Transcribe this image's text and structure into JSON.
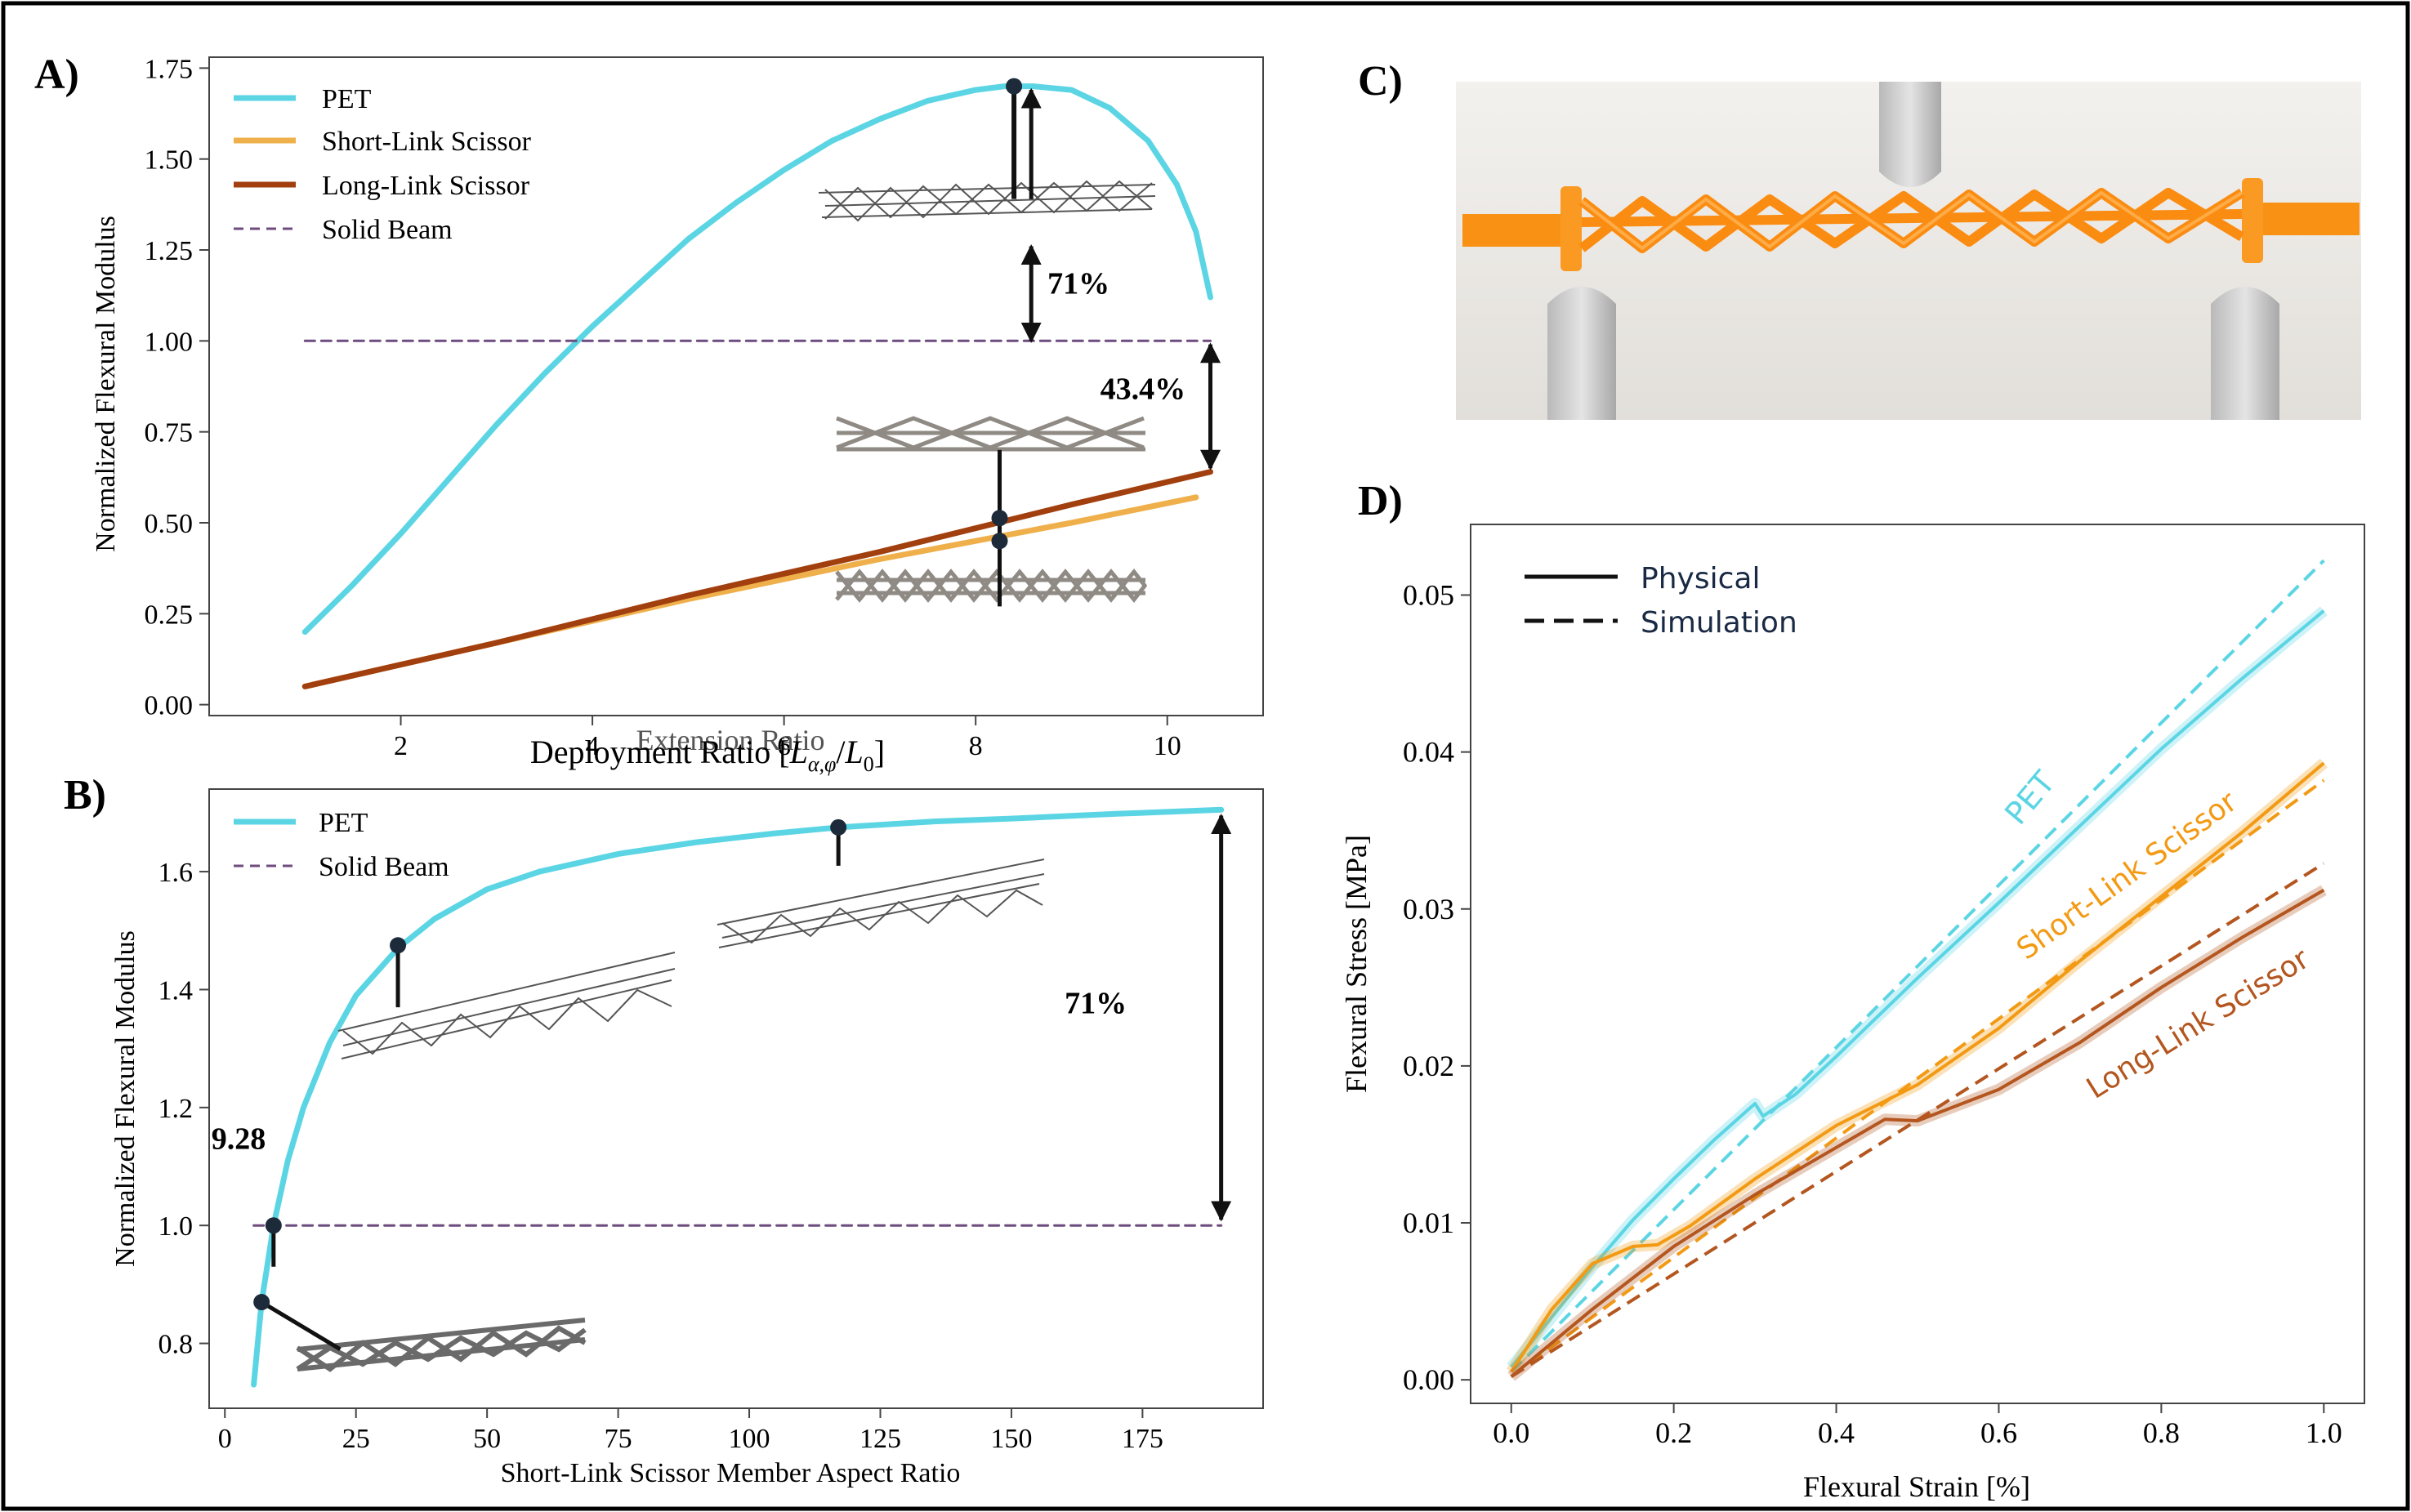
{
  "panels": {
    "A": "A)",
    "B": "B)",
    "C": "C)",
    "D": "D)"
  },
  "colors": {
    "pet": "#5bd5e4",
    "short": "#efb04c",
    "long": "#a23f0e",
    "solid": "#6e4c7e",
    "d_short": "#f39a14",
    "d_long": "#b4561f"
  },
  "chart_data": [
    {
      "id": "A",
      "type": "line",
      "title": "",
      "xlabel": "Deployment Ratio [L_{α,φ}/L_0]",
      "xlabel_main": "Deployment Ratio [",
      "xlabel_math": "L",
      "xlabel_sub": "α,φ",
      "xlabel_mid": "/",
      "xlabel_math2": "L",
      "xlabel_sub2": "0",
      "xlabel_end": "]",
      "xlabel_overlap": "Extension Ratio",
      "ylabel": "Normalized Flexural Modulus",
      "xlim": [
        0.0,
        11.0
      ],
      "ylim": [
        -0.03,
        1.78
      ],
      "xticks": [
        2,
        4,
        6,
        8,
        10
      ],
      "yticks": [
        0.0,
        0.25,
        0.5,
        0.75,
        1.0,
        1.25,
        1.5,
        1.75
      ],
      "ytick_labels": [
        "0.00",
        "0.25",
        "0.50",
        "0.75",
        "1.00",
        "1.25",
        "1.50",
        "1.75"
      ],
      "xtick_labels": [
        "2",
        "4",
        "6",
        "8",
        "10"
      ],
      "grid": false,
      "legend_position": "top-left",
      "series": [
        {
          "name": "PET",
          "style": "solid",
          "x": [
            1.0,
            1.5,
            2.0,
            2.5,
            3.0,
            3.5,
            4.0,
            4.5,
            5.0,
            5.5,
            6.0,
            6.5,
            7.0,
            7.5,
            8.0,
            8.3,
            8.6,
            9.0,
            9.4,
            9.8,
            10.1,
            10.3,
            10.45
          ],
          "y": [
            0.2,
            0.33,
            0.47,
            0.62,
            0.77,
            0.91,
            1.04,
            1.16,
            1.28,
            1.38,
            1.47,
            1.55,
            1.61,
            1.66,
            1.69,
            1.7,
            1.7,
            1.69,
            1.64,
            1.55,
            1.43,
            1.3,
            1.12
          ]
        },
        {
          "name": "Short-Link Scissor",
          "style": "solid",
          "x": [
            1.0,
            3.0,
            5.0,
            7.0,
            9.0,
            10.3
          ],
          "y": [
            0.05,
            0.17,
            0.29,
            0.4,
            0.5,
            0.57
          ]
        },
        {
          "name": "Long-Link Scissor",
          "style": "solid",
          "x": [
            1.0,
            3.0,
            5.0,
            7.0,
            9.0,
            10.45
          ],
          "y": [
            0.05,
            0.17,
            0.3,
            0.42,
            0.55,
            0.64
          ]
        },
        {
          "name": "Solid Beam",
          "style": "dashed",
          "x": [
            1.0,
            10.45
          ],
          "y": [
            1.0,
            1.0
          ]
        }
      ],
      "annotations": [
        {
          "text": "71%",
          "x": 8.35,
          "y": 1.2
        },
        {
          "text": "43.4%",
          "x": 9.4,
          "y": 0.84
        }
      ]
    },
    {
      "id": "B",
      "type": "line",
      "title": "",
      "xlabel": "Short-Link Scissor Member Aspect Ratio",
      "ylabel": "Normalized Flexural Modulus",
      "xlim": [
        -3.0,
        198.0
      ],
      "ylim": [
        0.69,
        1.74
      ],
      "xticks": [
        0,
        25,
        50,
        75,
        100,
        125,
        150,
        175
      ],
      "yticks": [
        0.8,
        1.0,
        1.2,
        1.4,
        1.6
      ],
      "xtick_labels": [
        "0",
        "25",
        "50",
        "75",
        "100",
        "125",
        "150",
        "175"
      ],
      "ytick_labels": [
        "0.8",
        "1.0",
        "1.2",
        "1.4",
        "1.6"
      ],
      "grid": false,
      "legend_position": "top-left",
      "series": [
        {
          "name": "PET",
          "style": "solid",
          "x": [
            5.5,
            7.0,
            9.28,
            12.0,
            15.0,
            20.0,
            25.0,
            33.0,
            40.0,
            50.0,
            60.0,
            75.0,
            90.0,
            105.0,
            117.0,
            135.0,
            150.0,
            170.0,
            190.0
          ],
          "y": [
            0.73,
            0.87,
            1.0,
            1.11,
            1.2,
            1.31,
            1.39,
            1.47,
            1.52,
            1.57,
            1.6,
            1.63,
            1.65,
            1.665,
            1.675,
            1.685,
            1.69,
            1.698,
            1.705
          ]
        },
        {
          "name": "Solid Beam",
          "style": "dashed",
          "x": [
            5.5,
            190.0
          ],
          "y": [
            1.0,
            1.0
          ]
        }
      ],
      "annotations": [
        {
          "text": "9.28",
          "x": 9.28,
          "y": 1.1
        },
        {
          "text": "71%",
          "x": 180.0,
          "y": 1.36
        }
      ]
    },
    {
      "id": "D",
      "type": "line",
      "title": "",
      "xlabel": "Flexural Strain [%]",
      "ylabel": "Flexural Stress [MPa]",
      "xlim": [
        -0.05,
        1.05
      ],
      "ylim": [
        -0.0015,
        0.0545
      ],
      "xticks": [
        0.0,
        0.2,
        0.4,
        0.6,
        0.8,
        1.0
      ],
      "yticks": [
        0.0,
        0.01,
        0.02,
        0.03,
        0.04,
        0.05
      ],
      "xtick_labels": [
        "0.0",
        "0.2",
        "0.4",
        "0.6",
        "0.8",
        "1.0"
      ],
      "ytick_labels": [
        "0.00",
        "0.01",
        "0.02",
        "0.03",
        "0.04",
        "0.05"
      ],
      "grid": false,
      "legend_position": "top-left",
      "legend": [
        "Physical",
        "Simulation"
      ],
      "series": [
        {
          "name": "PET",
          "style": "solid",
          "x": [
            0.0,
            0.05,
            0.1,
            0.15,
            0.2,
            0.25,
            0.3,
            0.31,
            0.35,
            0.4,
            0.5,
            0.6,
            0.7,
            0.8,
            0.9,
            1.0
          ],
          "y": [
            0.0008,
            0.004,
            0.0072,
            0.0102,
            0.0128,
            0.0153,
            0.0176,
            0.0168,
            0.0182,
            0.0206,
            0.0256,
            0.0304,
            0.0353,
            0.0402,
            0.0447,
            0.049
          ]
        },
        {
          "name": "PET",
          "style": "dashed",
          "x": [
            0.0,
            1.0
          ],
          "y": [
            0.0005,
            0.0522
          ]
        },
        {
          "name": "Short-Link Scissor",
          "style": "solid",
          "x": [
            0.0,
            0.05,
            0.1,
            0.15,
            0.18,
            0.22,
            0.3,
            0.4,
            0.5,
            0.6,
            0.7,
            0.8,
            0.9,
            1.0
          ],
          "y": [
            0.0005,
            0.0045,
            0.0074,
            0.0085,
            0.0086,
            0.0098,
            0.0128,
            0.0162,
            0.0188,
            0.0224,
            0.0267,
            0.0308,
            0.0349,
            0.0393
          ]
        },
        {
          "name": "Short-Link Scissor",
          "style": "dashed",
          "x": [
            0.0,
            1.0
          ],
          "y": [
            0.0002,
            0.0382
          ]
        },
        {
          "name": "Long-Link Scissor",
          "style": "solid",
          "x": [
            0.0,
            0.1,
            0.2,
            0.3,
            0.4,
            0.46,
            0.5,
            0.6,
            0.7,
            0.8,
            0.9,
            1.0
          ],
          "y": [
            0.0002,
            0.0045,
            0.0085,
            0.0118,
            0.0148,
            0.0166,
            0.0165,
            0.0185,
            0.0215,
            0.025,
            0.0282,
            0.0312
          ]
        },
        {
          "name": "Long-Link Scissor",
          "style": "dashed",
          "x": [
            0.0,
            1.0
          ],
          "y": [
            0.0002,
            0.0329
          ]
        }
      ],
      "curve_labels": [
        "PET",
        "Short-Link Scissor",
        "Long-Link Scissor"
      ]
    }
  ]
}
